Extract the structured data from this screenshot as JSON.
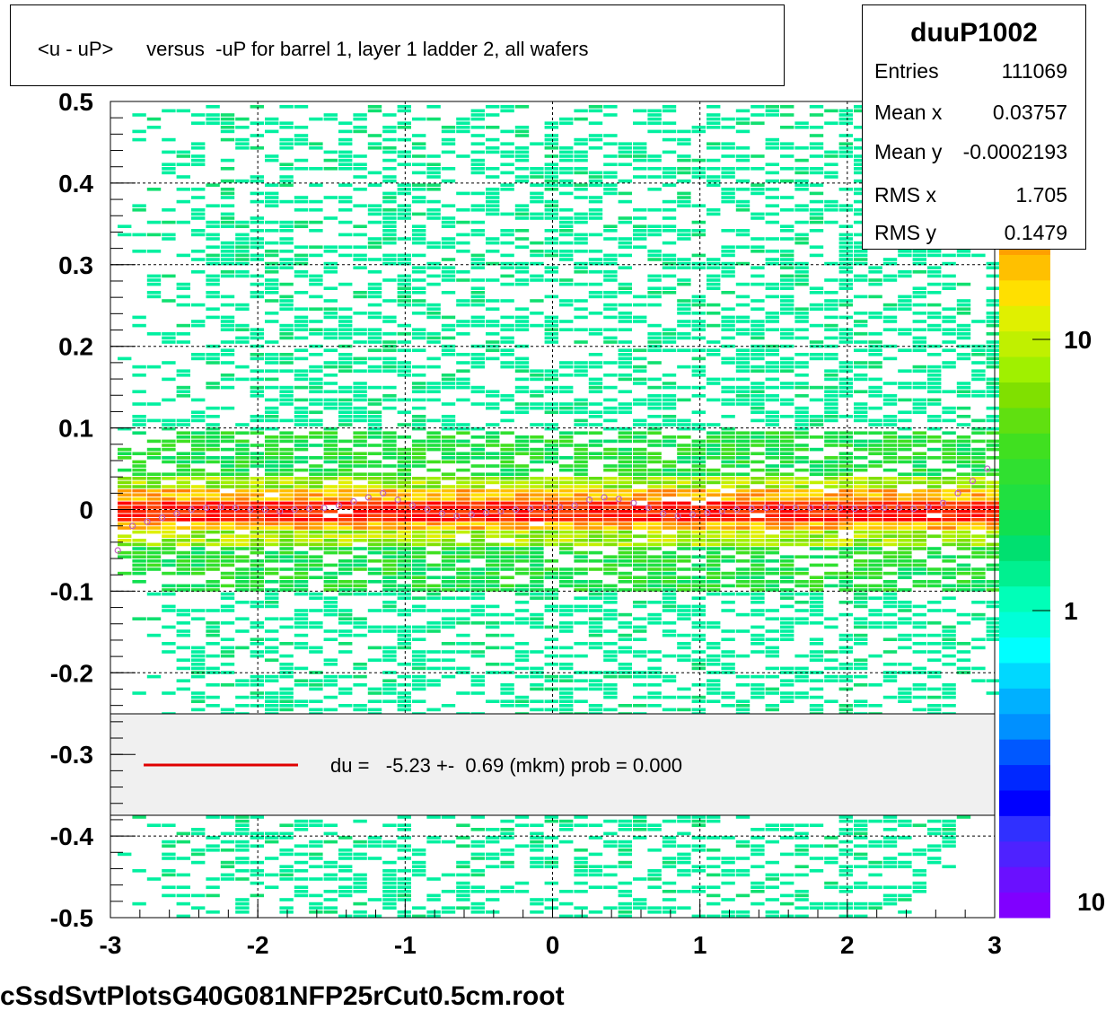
{
  "title_left": "<u - uP>",
  "title_right": "versus  -uP for barrel 1, layer 1 ladder 2, all wafers",
  "stats": {
    "name": "duuP1002",
    "rows": [
      {
        "key": "Entries",
        "value": "111069"
      },
      {
        "key": "Mean x",
        "value": "0.03757"
      },
      {
        "key": "Mean y",
        "value": "-0.0002193"
      },
      {
        "key": "RMS x",
        "value": "1.705"
      },
      {
        "key": "RMS y",
        "value": "0.1479"
      }
    ]
  },
  "legend": {
    "text": "du =   -5.23 +-  0.69 (mkm) prob = 0.000",
    "line_color": "#e00000"
  },
  "footer": "cSsdSvtPlotsG40G081NFP25rCut0.5cm.root",
  "chart_data": {
    "type": "heatmap",
    "xlim": [
      -3,
      3
    ],
    "ylim": [
      -0.5,
      0.5
    ],
    "x_ticks": [
      "-3",
      "-2",
      "-1",
      "0",
      "1",
      "2",
      "3"
    ],
    "y_ticks": [
      "0.5",
      "0.4",
      "0.3",
      "0.2",
      "0.1",
      "0",
      "-0.1",
      "-0.2",
      "-0.3",
      "-0.4",
      "-0.5"
    ],
    "grid": true,
    "colorbar": {
      "scale": "log",
      "labels": [
        "10",
        "1",
        "10"
      ],
      "colors": [
        "#8000ff",
        "#6a10ff",
        "#4e22ff",
        "#3030ff",
        "#0000ff",
        "#0028ff",
        "#0058ff",
        "#0090ff",
        "#00b0ff",
        "#00d8ff",
        "#00ffff",
        "#00ffd8",
        "#00ffb8",
        "#00f090",
        "#00e070",
        "#10e050",
        "#20e040",
        "#30e030",
        "#40e020",
        "#60e010",
        "#80e000",
        "#a0f000",
        "#c0f000",
        "#e0f000",
        "#ffe000",
        "#ffc000",
        "#ffa000",
        "#ff8000",
        "#ff6000",
        "#ff4000",
        "#ff2000",
        "#ff0000"
      ]
    },
    "profile": {
      "x": [
        -2.95,
        -2.85,
        -2.75,
        -2.65,
        -2.55,
        -2.45,
        -2.35,
        -2.25,
        -2.15,
        -2.05,
        -1.95,
        -1.85,
        -1.75,
        -1.65,
        -1.55,
        -1.45,
        -1.35,
        -1.25,
        -1.15,
        -1.05,
        -0.95,
        -0.85,
        -0.75,
        -0.65,
        -0.55,
        -0.45,
        -0.35,
        -0.25,
        -0.15,
        -0.05,
        0.05,
        0.15,
        0.25,
        0.35,
        0.45,
        0.55,
        0.65,
        0.75,
        0.85,
        0.95,
        1.05,
        1.15,
        1.25,
        1.35,
        1.45,
        1.55,
        1.65,
        1.75,
        1.85,
        1.95,
        2.05,
        2.15,
        2.25,
        2.35,
        2.45,
        2.55,
        2.65,
        2.75,
        2.85,
        2.95
      ],
      "y": [
        -0.05,
        -0.02,
        -0.015,
        -0.01,
        -0.005,
        0.0,
        0.002,
        0.003,
        0.002,
        0.0,
        0.0,
        -0.002,
        0.0,
        0.001,
        0.002,
        0.005,
        0.01,
        0.015,
        0.02,
        0.012,
        0.005,
        0.0,
        -0.005,
        -0.008,
        -0.006,
        -0.004,
        -0.002,
        0.0,
        0.001,
        0.002,
        0.003,
        0.005,
        0.012,
        0.015,
        0.013,
        0.008,
        0.002,
        -0.005,
        -0.008,
        -0.006,
        -0.004,
        -0.002,
        0.0,
        0.001,
        0.002,
        0.003,
        0.002,
        0.002,
        0.003,
        0.002,
        0.001,
        0.001,
        0.002,
        0.002,
        0.001,
        0.003,
        0.008,
        0.02,
        0.035,
        0.05
      ]
    }
  }
}
